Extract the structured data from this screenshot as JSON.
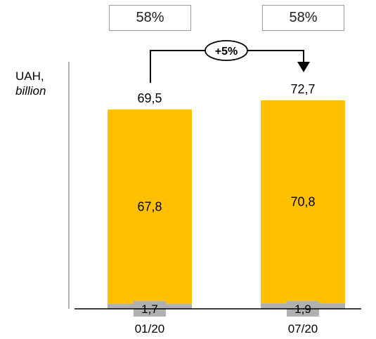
{
  "chart_data": {
    "type": "bar",
    "stacked": true,
    "categories": [
      "01/20",
      "07/20"
    ],
    "series": [
      {
        "values": [
          1.7,
          1.9
        ],
        "labels": [
          "1,7",
          "1,9"
        ],
        "color": "#b0b0b0"
      },
      {
        "values": [
          67.8,
          70.8
        ],
        "labels": [
          "67,8",
          "70,8"
        ],
        "color": "#FFC000"
      }
    ],
    "totals": [
      69.5,
      72.7
    ],
    "total_labels": [
      "69,5",
      "72,7"
    ],
    "ylabel": {
      "unit": "UAH,",
      "scale": "billion"
    },
    "shares": [
      "58%",
      "58%"
    ],
    "growth_label": "+5%",
    "ylim": [
      0,
      75
    ],
    "grid": false
  }
}
